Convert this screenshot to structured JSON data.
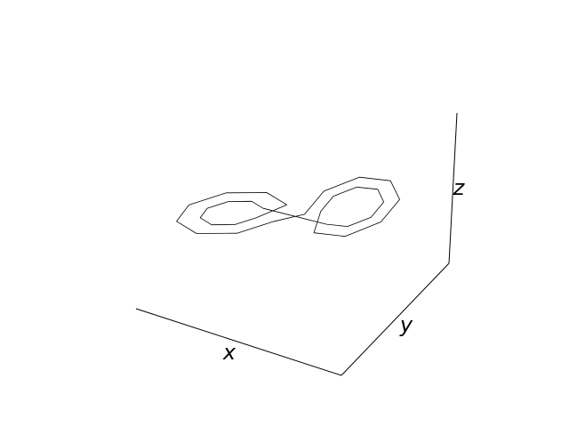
{
  "chart_data": {
    "type": "line3d",
    "xlabel": "x",
    "ylabel": "y",
    "zlabel": "z",
    "color": "#000000",
    "xlim": [
      -20,
      20
    ],
    "ylim": [
      -25,
      30
    ],
    "zlim": [
      0,
      50
    ],
    "x": [
      -4.5,
      -5.7,
      -8.5,
      -11.3,
      -12.5,
      -11.3,
      -8.5,
      -5.7,
      -1.5,
      -3.6,
      -8.5,
      -13.4,
      -15.5,
      -13.4,
      -8.5,
      -3.6,
      2.5,
      4.3,
      8.5,
      12.7,
      14.5,
      12.7,
      8.5,
      4.3,
      4.5,
      5.7,
      8.5,
      11.3,
      12.5,
      11.3,
      8.5,
      5.7,
      -4.5
    ],
    "y": [
      -2.9,
      -5.9,
      -10.5,
      -13.9,
      -14.1,
      -11.1,
      -6.5,
      -3.1,
      1.3,
      -3.9,
      -12,
      -18,
      -18.3,
      -13.1,
      -5,
      0.9,
      -0.1,
      4.6,
      11.5,
      16.6,
      17,
      12.6,
      5.5,
      0.4,
      2.9,
      5.9,
      10.5,
      13.9,
      14.1,
      11.1,
      6.5,
      3.1,
      -2.9
    ],
    "z": [
      27,
      30.7,
      32.2,
      30.7,
      27,
      23.3,
      21.8,
      23.3,
      27,
      33.4,
      36.1,
      33.4,
      27,
      20.6,
      17.9,
      20.6,
      27,
      32.5,
      34.8,
      32.5,
      27,
      21.5,
      19.2,
      21.5,
      27,
      30.7,
      32.2,
      30.7,
      27,
      23.3,
      21.8,
      23.3,
      27
    ]
  }
}
